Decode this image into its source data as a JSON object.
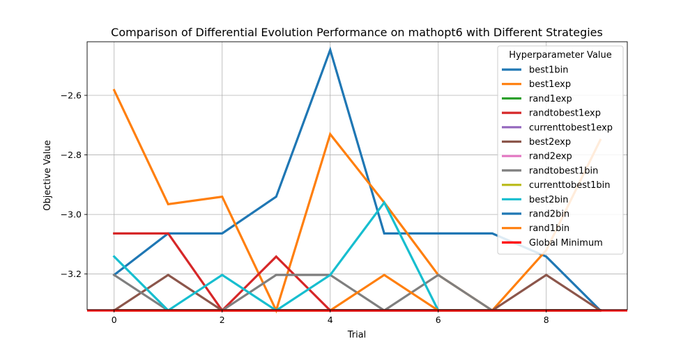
{
  "chart_data": {
    "type": "line",
    "title": "Comparison of Differential Evolution Performance on mathopt6 with Different Strategies",
    "xlabel": "Trial",
    "ylabel": "Objective Value",
    "xlim": [
      -0.5,
      9.5
    ],
    "ylim": [
      -3.32,
      -2.42
    ],
    "xticks": [
      0,
      2,
      4,
      6,
      8
    ],
    "yticks": [
      -3.2,
      -3.0,
      -2.8,
      -2.6
    ],
    "xtick_labels": [
      "0",
      "2",
      "4",
      "6",
      "8"
    ],
    "ytick_labels": [
      "−3.2",
      "−3.0",
      "−2.8",
      "−2.6"
    ],
    "grid": true,
    "legend": {
      "title": "Hyperparameter Value",
      "placement": "top-right"
    },
    "x": [
      0,
      1,
      2,
      3,
      4,
      5,
      6,
      7,
      8,
      9
    ],
    "series": [
      {
        "name": "best1bin",
        "color": "#1f77b4",
        "values": [
          -3.2032,
          -3.0637,
          -3.0637,
          -2.9404,
          -2.4473,
          -3.0637,
          -3.0637,
          -3.0637,
          -3.1416,
          -3.3224
        ]
      },
      {
        "name": "best1exp",
        "color": "#ff7f0e",
        "values": [
          -2.5826,
          -2.9655,
          -2.9404,
          -3.3224,
          -2.7305,
          -2.96,
          -3.2032,
          -3.3224,
          -3.12,
          -2.75
        ]
      },
      {
        "name": "rand1exp",
        "color": "#2ca02c",
        "values": [
          -3.3224,
          -3.3224,
          -3.3224,
          -3.3224,
          -3.3224,
          -3.3224,
          -3.3224,
          -3.3224,
          -3.3224,
          -3.3224
        ]
      },
      {
        "name": "randtobest1exp",
        "color": "#d62728",
        "values": [
          -3.0637,
          -3.0637,
          -3.3224,
          -3.1416,
          -3.3224,
          -3.3224,
          -3.3224,
          -3.3224,
          -3.3224,
          -3.3224
        ]
      },
      {
        "name": "currenttobest1exp",
        "color": "#9467bd",
        "values": [
          -3.3224,
          -3.3224,
          -3.3224,
          -3.3224,
          -3.3224,
          -3.3224,
          -3.3224,
          -3.3224,
          -3.3224,
          -3.3224
        ]
      },
      {
        "name": "best2exp",
        "color": "#8c564b",
        "values": [
          -3.3224,
          -3.2032,
          -3.3224,
          -3.3224,
          -3.3224,
          -3.3224,
          -3.3224,
          -3.3224,
          -3.2032,
          -3.3224
        ]
      },
      {
        "name": "rand2exp",
        "color": "#e377c2",
        "values": [
          -3.3224,
          -3.3224,
          -3.3224,
          -3.3224,
          -3.3224,
          -3.3224,
          -3.3224,
          -3.3224,
          -3.3224,
          -3.3224
        ]
      },
      {
        "name": "randtobest1bin",
        "color": "#7f7f7f",
        "values": [
          -3.2032,
          -3.3224,
          -3.3224,
          -3.2032,
          -3.2032,
          -3.3224,
          -3.2032,
          -3.3224,
          -3.3224,
          -3.3224
        ]
      },
      {
        "name": "currenttobest1bin",
        "color": "#bcbd22",
        "values": [
          -3.3224,
          -3.3224,
          -3.3224,
          -3.3224,
          -3.3224,
          -3.3224,
          -3.3224,
          -3.3224,
          -3.3224,
          -3.3224
        ]
      },
      {
        "name": "best2bin",
        "color": "#17becf",
        "values": [
          -3.1416,
          -3.3224,
          -3.2032,
          -3.3224,
          -3.2032,
          -2.96,
          -3.3224,
          -3.3224,
          -3.3224,
          -3.3224
        ]
      },
      {
        "name": "rand2bin",
        "color": "#1f77b4",
        "values": [
          -3.3224,
          -3.3224,
          -3.3224,
          -3.3224,
          -3.3224,
          -3.3224,
          -3.3224,
          -3.3224,
          -3.3224,
          -3.3224
        ]
      },
      {
        "name": "rand1bin",
        "color": "#ff7f0e",
        "values": [
          -3.3224,
          -3.3224,
          -3.3224,
          -3.3224,
          -3.3224,
          -3.2032,
          -3.3224,
          -3.3224,
          -3.3224,
          -3.3224
        ]
      }
    ],
    "global_minimum": {
      "name": "Global Minimum",
      "value": -3.3224,
      "color": "#ff0000"
    }
  }
}
